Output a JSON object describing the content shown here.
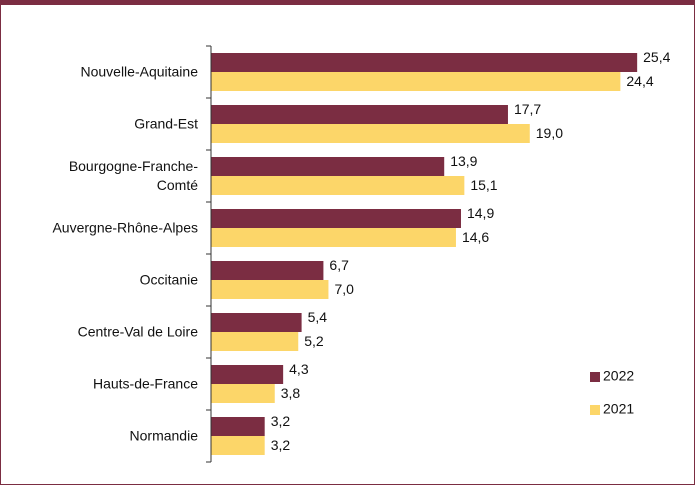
{
  "chart_data": {
    "type": "bar",
    "orientation": "horizontal",
    "categories": [
      "Nouvelle-Aquitaine",
      "Grand-Est",
      "Bourgogne-Franche-Comté",
      "Auvergne-Rhône-Alpes",
      "Occitanie",
      "Centre-Val de Loire",
      "Hauts-de-France",
      "Normandie"
    ],
    "series": [
      {
        "name": "2022",
        "color": "#7b2d42",
        "values": [
          25.4,
          17.7,
          13.9,
          14.9,
          6.7,
          5.4,
          4.3,
          3.2
        ],
        "value_labels": [
          "25,4",
          "17,7",
          "13,9",
          "14,9",
          "6,7",
          "5,4",
          "4,3",
          "3,2"
        ]
      },
      {
        "name": "2021",
        "color": "#fcd669",
        "values": [
          24.4,
          19.0,
          15.1,
          14.6,
          7.0,
          5.2,
          3.8,
          3.2
        ],
        "value_labels": [
          "24,4",
          "19,0",
          "15,1",
          "14,6",
          "7,0",
          "5,2",
          "3,8",
          "3,2"
        ]
      }
    ],
    "xlim": [
      0,
      27
    ],
    "legend": "bottom-right"
  }
}
